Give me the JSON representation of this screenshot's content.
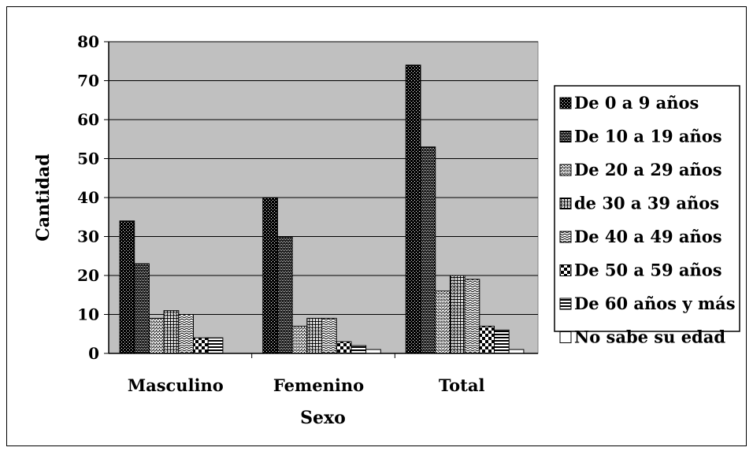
{
  "chart_data": {
    "type": "bar",
    "title": "",
    "xlabel": "Sexo",
    "ylabel": "Cantidad",
    "ylim": [
      0,
      80
    ],
    "yticks": [
      "0",
      "10",
      "20",
      "30",
      "40",
      "50",
      "60",
      "70",
      "80"
    ],
    "categories": [
      "Masculino",
      "Femenino",
      "Total"
    ],
    "grid": true,
    "legend_position": "right",
    "plot_background": "#c0c0c0",
    "series": [
      {
        "name": "De 0 a 9 años",
        "values": [
          34,
          40,
          74
        ]
      },
      {
        "name": "De 10 a 19 años",
        "values": [
          23,
          30,
          53
        ]
      },
      {
        "name": "De 20 a 29 años",
        "values": [
          9,
          7,
          16
        ]
      },
      {
        "name": "de 30 a 39 años",
        "values": [
          11,
          9,
          20
        ]
      },
      {
        "name": "De 40 a 49 años",
        "values": [
          10,
          9,
          19
        ]
      },
      {
        "name": "De 50 a 59 años",
        "values": [
          4,
          3,
          7
        ]
      },
      {
        "name": "De 60 años y más",
        "values": [
          4,
          2,
          6
        ]
      },
      {
        "name": "No sabe su edad",
        "values": [
          0,
          1,
          1
        ]
      }
    ]
  }
}
